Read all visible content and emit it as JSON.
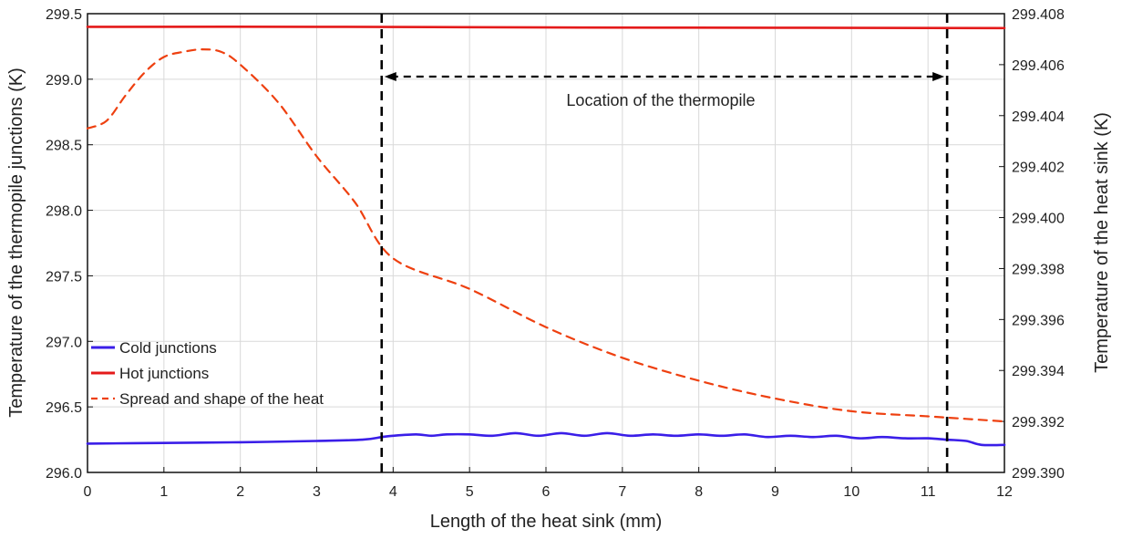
{
  "chart_data": {
    "type": "line",
    "xlabel": "Length of the heat sink (mm)",
    "ylabel_left": "Temperature of the thermopile junctions (K)",
    "ylabel_right": "Temperature of the heat sink (K)",
    "xlim": [
      0,
      12
    ],
    "ylim_left": [
      296.0,
      299.5
    ],
    "ylim_right": [
      299.39,
      299.408
    ],
    "x_ticks": [
      "0",
      "1",
      "2",
      "3",
      "4",
      "5",
      "6",
      "7",
      "8",
      "9",
      "10",
      "11",
      "12"
    ],
    "y_left_ticks": [
      "296.0",
      "296.5",
      "297.0",
      "297.5",
      "298.0",
      "298.5",
      "299.0",
      "299.5"
    ],
    "y_right_ticks": [
      "299.390",
      "299.392",
      "299.394",
      "299.396",
      "299.398",
      "299.400",
      "299.402",
      "299.404",
      "299.406",
      "299.408"
    ],
    "grid": true,
    "legend_position": "bottom-left",
    "series": [
      {
        "name": "Cold junctions",
        "axis": "left",
        "color": "#3a1ee8",
        "style": "solid",
        "x": [
          0,
          1,
          2,
          3,
          3.6,
          3.85,
          4.0,
          4.3,
          4.5,
          4.7,
          5.0,
          5.3,
          5.6,
          5.9,
          6.2,
          6.5,
          6.8,
          7.1,
          7.4,
          7.7,
          8.0,
          8.3,
          8.6,
          8.9,
          9.2,
          9.5,
          9.8,
          10.1,
          10.4,
          10.7,
          11.0,
          11.25,
          11.5,
          11.7,
          12
        ],
        "y": [
          296.22,
          296.225,
          296.23,
          296.24,
          296.25,
          296.27,
          296.28,
          296.29,
          296.28,
          296.29,
          296.29,
          296.28,
          296.3,
          296.28,
          296.3,
          296.28,
          296.3,
          296.28,
          296.29,
          296.28,
          296.29,
          296.28,
          296.29,
          296.27,
          296.28,
          296.27,
          296.28,
          296.26,
          296.27,
          296.26,
          296.26,
          296.25,
          296.24,
          296.21,
          296.21
        ]
      },
      {
        "name": "Hot junctions",
        "axis": "left",
        "color": "#e41a1a",
        "style": "solid",
        "x": [
          0,
          3,
          6,
          9,
          12
        ],
        "y": [
          299.4,
          299.4,
          299.395,
          299.393,
          299.39
        ]
      },
      {
        "name": "Spread and shape of the heat",
        "axis": "right",
        "color": "#ee4010",
        "style": "dashed",
        "x": [
          0,
          0.25,
          0.5,
          0.75,
          1.0,
          1.25,
          1.5,
          1.75,
          2.0,
          2.5,
          3.0,
          3.5,
          4.0,
          5.0,
          6.0,
          7.0,
          8.0,
          9.0,
          10.0,
          11.0,
          11.5,
          12.0
        ],
        "y": [
          299.4035,
          299.4038,
          299.4048,
          299.4057,
          299.4063,
          299.4065,
          299.4066,
          299.4065,
          299.406,
          299.4045,
          299.4024,
          299.4006,
          299.3984,
          299.3972,
          299.3957,
          299.3945,
          299.3936,
          299.3929,
          299.3924,
          299.3922,
          299.3921,
          299.392
        ]
      }
    ],
    "annotations": {
      "region_label": "Location of the thermopile",
      "region_x": [
        3.85,
        11.25
      ]
    }
  }
}
